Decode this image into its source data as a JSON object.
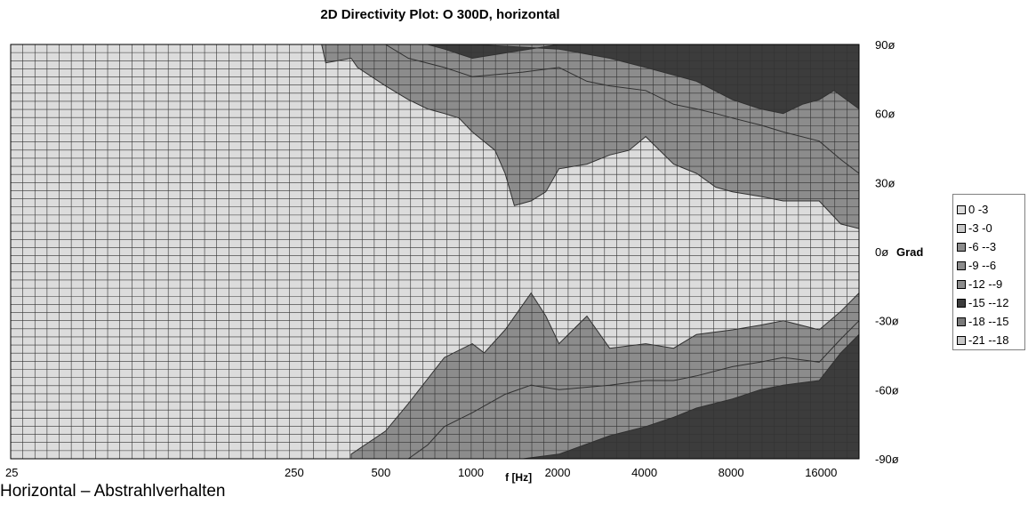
{
  "chart_data": {
    "type": "heatmap",
    "title": "2D Directivity Plot: O 300D, horizontal",
    "xlabel": "f [Hz]",
    "x_scale": "log",
    "xlim": [
      25,
      22000
    ],
    "x_ticks": [
      {
        "value": 25,
        "label": "25"
      },
      {
        "value": 250,
        "label": "250"
      },
      {
        "value": 500,
        "label": "500"
      },
      {
        "value": 1000,
        "label": "1000"
      },
      {
        "value": 2000,
        "label": "2000"
      },
      {
        "value": 4000,
        "label": "4000"
      },
      {
        "value": 8000,
        "label": "8000"
      },
      {
        "value": 16000,
        "label": "16000"
      }
    ],
    "ylim": [
      -90,
      90
    ],
    "y_ticks": [
      {
        "value": 90,
        "label": "90ø"
      },
      {
        "value": 60,
        "label": "60ø"
      },
      {
        "value": 30,
        "label": "30ø"
      },
      {
        "value": 0,
        "label": "0ø",
        "suffix": "Grad"
      },
      {
        "value": -30,
        "label": "-30ø"
      },
      {
        "value": -60,
        "label": "-60ø"
      },
      {
        "value": -90,
        "label": "-90ø"
      }
    ],
    "grid": true,
    "legend_position": "right",
    "legend": [
      {
        "label": "0 -3",
        "color": "#dcdcdc"
      },
      {
        "label": "-3 -0",
        "color": "#c8c8c8"
      },
      {
        "label": "-6 --3",
        "color": "#8c8c8c"
      },
      {
        "label": "-9 --6",
        "color": "#8c8c8c"
      },
      {
        "label": "-12 --9",
        "color": "#8c8c8c"
      },
      {
        "label": "-15 --12",
        "color": "#3c3c3c"
      },
      {
        "label": "-18 --15",
        "color": "#7a7a7a"
      },
      {
        "label": "-21 --18",
        "color": "#c8c8c8"
      }
    ],
    "contours": [
      {
        "name": "-3",
        "color": "#8c8c8c",
        "upper": [
          [
            25,
            90
          ],
          [
            300,
            90
          ],
          [
            310,
            82
          ],
          [
            380,
            84
          ],
          [
            400,
            80
          ],
          [
            500,
            72
          ],
          [
            600,
            66
          ],
          [
            700,
            62
          ],
          [
            800,
            60
          ],
          [
            900,
            58
          ],
          [
            1000,
            52
          ],
          [
            1200,
            44
          ],
          [
            1300,
            34
          ],
          [
            1400,
            20
          ],
          [
            1600,
            22
          ],
          [
            1800,
            26
          ],
          [
            2000,
            36
          ],
          [
            2500,
            38
          ],
          [
            3000,
            42
          ],
          [
            3500,
            44
          ],
          [
            4000,
            50
          ],
          [
            5000,
            38
          ],
          [
            6000,
            34
          ],
          [
            7000,
            28
          ],
          [
            8000,
            26
          ],
          [
            10000,
            24
          ],
          [
            12000,
            22
          ],
          [
            16000,
            22
          ],
          [
            19000,
            12
          ],
          [
            22000,
            10
          ]
        ],
        "lower": [
          [
            25,
            -90
          ],
          [
            380,
            -90
          ],
          [
            380,
            -88
          ],
          [
            500,
            -78
          ],
          [
            600,
            -66
          ],
          [
            800,
            -46
          ],
          [
            1000,
            -40
          ],
          [
            1100,
            -44
          ],
          [
            1300,
            -34
          ],
          [
            1600,
            -18
          ],
          [
            1800,
            -28
          ],
          [
            2000,
            -40
          ],
          [
            2500,
            -28
          ],
          [
            3000,
            -42
          ],
          [
            4000,
            -40
          ],
          [
            5000,
            -42
          ],
          [
            6000,
            -36
          ],
          [
            8000,
            -34
          ],
          [
            10000,
            -32
          ],
          [
            12000,
            -30
          ],
          [
            16000,
            -34
          ],
          [
            19000,
            -26
          ],
          [
            22000,
            -18
          ]
        ]
      },
      {
        "name": "-9",
        "color": "#8c8c8c",
        "upper": [
          [
            25,
            90
          ],
          [
            500,
            90
          ],
          [
            600,
            84
          ],
          [
            800,
            80
          ],
          [
            1000,
            76
          ],
          [
            1500,
            78
          ],
          [
            2000,
            80
          ],
          [
            2500,
            74
          ],
          [
            3000,
            72
          ],
          [
            4000,
            70
          ],
          [
            5000,
            64
          ],
          [
            6000,
            62
          ],
          [
            7000,
            60
          ],
          [
            8000,
            58
          ],
          [
            10000,
            55
          ],
          [
            12000,
            52
          ],
          [
            16000,
            48
          ],
          [
            19000,
            40
          ],
          [
            22000,
            34
          ]
        ],
        "lower": [
          [
            25,
            -90
          ],
          [
            600,
            -90
          ],
          [
            700,
            -84
          ],
          [
            800,
            -76
          ],
          [
            1000,
            -70
          ],
          [
            1300,
            -62
          ],
          [
            1600,
            -58
          ],
          [
            2000,
            -60
          ],
          [
            3000,
            -58
          ],
          [
            4000,
            -56
          ],
          [
            5000,
            -56
          ],
          [
            6000,
            -54
          ],
          [
            8000,
            -50
          ],
          [
            10000,
            -48
          ],
          [
            12000,
            -46
          ],
          [
            16000,
            -48
          ],
          [
            19000,
            -38
          ],
          [
            22000,
            -30
          ]
        ]
      },
      {
        "name": "-15",
        "color": "#3c3c3c",
        "upper": [
          [
            25,
            90
          ],
          [
            700,
            90
          ],
          [
            800,
            88
          ],
          [
            1000,
            84
          ],
          [
            2000,
            90
          ],
          [
            22000,
            90
          ],
          [
            22000,
            62
          ],
          [
            18000,
            70
          ],
          [
            16000,
            66
          ],
          [
            14000,
            64
          ],
          [
            12000,
            60
          ],
          [
            10000,
            62
          ],
          [
            8000,
            66
          ],
          [
            6000,
            74
          ],
          [
            4000,
            80
          ],
          [
            3000,
            84
          ],
          [
            2000,
            88
          ],
          [
            1000,
            90
          ]
        ],
        "lower": [
          [
            25,
            -90
          ],
          [
            1500,
            -90
          ],
          [
            2000,
            -88
          ],
          [
            3000,
            -80
          ],
          [
            4000,
            -76
          ],
          [
            5000,
            -72
          ],
          [
            6000,
            -68
          ],
          [
            8000,
            -64
          ],
          [
            10000,
            -60
          ],
          [
            12000,
            -58
          ],
          [
            16000,
            -56
          ],
          [
            19000,
            -44
          ],
          [
            22000,
            -36
          ]
        ]
      }
    ]
  }
}
